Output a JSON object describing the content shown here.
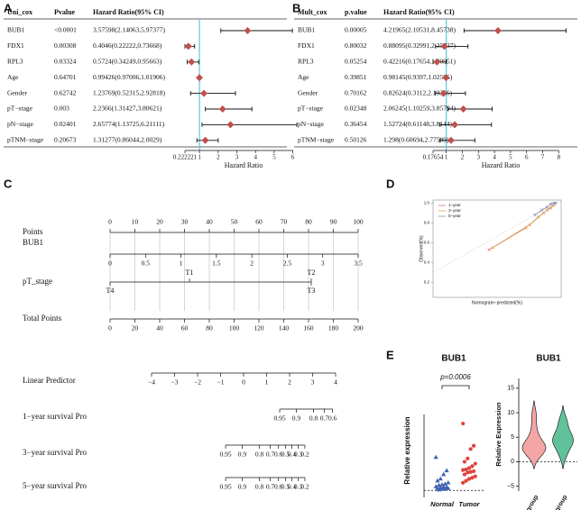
{
  "panel_labels": [
    "A",
    "B",
    "C",
    "D",
    "E"
  ],
  "chart_data": [
    {
      "type": "forest",
      "header": [
        "Uni_cox",
        "Pvalue",
        "Hazard Ratio(95% CI)"
      ],
      "categories": [
        "BUB1",
        "FDX1",
        "RPL3",
        "Age",
        "Gender",
        "pT−stage",
        "pN−stage",
        "pTNM−stage"
      ],
      "pvalues": [
        "<0.0001",
        "0.00308",
        "0.03324",
        "0.64701",
        "0.62742",
        "0.003",
        "0.02401",
        "0.20673"
      ],
      "values": [
        3.57598,
        0.4046,
        0.5724,
        0.99426,
        1.23769,
        2.2366,
        2.65774,
        1.31277
      ],
      "lower": [
        2.14063,
        0.22222,
        0.34249,
        0.97006,
        0.52315,
        1.31427,
        1.13725,
        0.86044
      ],
      "upper": [
        5.97377,
        0.73668,
        0.95663,
        1.01906,
        2.92818,
        3.80621,
        6.21111,
        2.0029
      ],
      "value_labels": [
        "3.57598(2.14063,5.97377)",
        "0.4046(0.22222,0.73668)",
        "0.5724(0.34249,0.95663)",
        "0.99426(0.97006,1.01906)",
        "1.23769(0.52315,2.92818)",
        "2.2366(1.31427,3.80621)",
        "2.65774(1.13725,6.21111)",
        "1.31277(0.86044,2.0029)"
      ],
      "xlabel": "Hazard Ratio",
      "xlim": [
        0.222221,
        6.5
      ],
      "xticks": [
        0.222221,
        1,
        2,
        3,
        4,
        5,
        6
      ],
      "reference_line": 1,
      "color": "#c0504d",
      "reference_color": "#5bc8d6"
    },
    {
      "type": "forest",
      "header": [
        "Mult_cox",
        "p.value",
        "Hazard Ratio(95% CI)"
      ],
      "categories": [
        "BUB1",
        "FDX1",
        "RPL3",
        "Age",
        "Gender",
        "pT−stage",
        "pN−stage",
        "pTNM−stage"
      ],
      "pvalues": [
        "0.00005",
        "0.80032",
        "0.05254",
        "0.39851",
        "0.70162",
        "0.02348",
        "0.36454",
        "0.50126"
      ],
      "values": [
        4.21965,
        0.88095,
        0.42216,
        0.98145,
        0.82624,
        2.06245,
        1.52724,
        1.298
      ],
      "lower": [
        2.10531,
        0.32991,
        0.17654,
        0.9397,
        0.3112,
        1.10259,
        0.61148,
        0.60694
      ],
      "upper": [
        8.45738,
        2.35237,
        1.00951,
        1.02505,
        2.19366,
        3.85794,
        3.8144,
        2.77589
      ],
      "value_labels": [
        "4.21965(2.10531,8.45738)",
        "0.88095(0.32991,2.35237)",
        "0.42216(0.17654,1.00951)",
        "0.98145(0.9397,1.02505)",
        "0.82624(0.3112,2.19366)",
        "2.06245(1.10259,3.85794)",
        "1.52724(0.61148,3.8144)",
        "1.298(0.60694,2.77589)"
      ],
      "xlabel": "Hazard Ratio",
      "xlim": [
        0.17654,
        8.6
      ],
      "xticks": [
        0.17654,
        1,
        2,
        3,
        4,
        5,
        6,
        7,
        8
      ],
      "reference_line": 1,
      "color": "#c0504d",
      "reference_color": "#5bc8d6"
    },
    {
      "type": "nomogram",
      "scales": [
        {
          "label": "Points",
          "ticks": [
            0,
            10,
            20,
            30,
            40,
            50,
            60,
            70,
            80,
            90,
            100
          ]
        },
        {
          "label": "BUB1",
          "ticks": [
            0,
            0.5,
            1,
            1.5,
            2,
            2.5,
            3,
            3.5
          ]
        },
        {
          "label": "pT_stage",
          "categories": [
            "T1",
            "T2",
            "T4",
            "T3"
          ]
        },
        {
          "label": "Total Points",
          "ticks": [
            0,
            20,
            40,
            60,
            80,
            100,
            120,
            140,
            160,
            180,
            200
          ]
        },
        {
          "label": "Linear Predictor",
          "ticks": [
            {
              "value": -4,
              "label": "−4"
            },
            {
              "value": -3,
              "label": "−3"
            },
            {
              "value": -2,
              "label": "−2"
            },
            {
              "value": -1,
              "label": "−1"
            },
            0,
            1,
            2,
            3,
            4
          ]
        },
        {
          "label": "1−year survival Pro",
          "ticks": [
            0.95,
            0.9,
            0.8,
            0.7,
            0.6
          ]
        },
        {
          "label": "3−year survival Pro",
          "ticks": [
            0.95,
            0.9,
            0.8,
            0.7,
            0.6,
            0.5,
            0.4,
            0.3,
            0.2
          ]
        },
        {
          "label": "5−year survival Pro",
          "ticks": [
            0.95,
            0.9,
            0.8,
            0.7,
            0.6,
            0.5,
            0.4,
            0.3,
            0.2
          ]
        }
      ]
    },
    {
      "type": "calibration",
      "ylabel": "Observed(%)",
      "xlabel": "Nomogram−predicted(%)",
      "xlim": [
        0.3,
        1.03
      ],
      "ylim": [
        0.05,
        1.03
      ],
      "yticks": [
        0.2,
        0.4,
        0.6,
        0.8,
        {
          "value": 1,
          "label": "1.0"
        }
      ],
      "series": [
        {
          "name": "1−year",
          "color": "#e8787a",
          "x": [
            0.62,
            0.85,
            0.93,
            0.97,
            0.99
          ],
          "y": [
            0.53,
            0.78,
            0.9,
            0.95,
            0.98
          ]
        },
        {
          "name": "3−year",
          "color": "#d9a54a",
          "x": [
            0.64,
            0.83,
            0.9,
            0.95,
            0.98
          ],
          "y": [
            0.55,
            0.75,
            0.86,
            0.93,
            0.97
          ]
        },
        {
          "name": "5−year",
          "color": "#7f8fb0",
          "x": [
            0.88,
            0.92,
            0.95,
            0.97,
            0.99,
            1.0
          ],
          "y": [
            0.88,
            0.93,
            0.96,
            0.99,
            1.0,
            1.0
          ]
        }
      ]
    },
    {
      "type": "dotplot",
      "title": "BUB1",
      "ylabel": "Relative expression",
      "categories": [
        "Normal",
        "Tumor"
      ],
      "annotation": "p=0.0006",
      "ylim": [
        -1.1,
        19
      ],
      "groups": [
        {
          "color": "#3d5fb0",
          "marker": "triangle",
          "values": [
            5.2,
            3.1,
            2.5,
            1.8,
            1.5,
            1.2,
            1.0,
            0.9,
            0.8,
            0.6,
            0.5,
            0.5,
            0.4,
            0.3,
            0.3,
            0.2,
            0.2,
            0.1
          ]
        },
        {
          "color": "#e0403a",
          "marker": "circle",
          "values": [
            10.5,
            7.0,
            6.5,
            5.0,
            4.5,
            4.2,
            3.8,
            3.5,
            3.3,
            3.2,
            3.0,
            2.9,
            2.8,
            2.5,
            2.2,
            2.0,
            1.8,
            1.5,
            1.2
          ]
        }
      ]
    },
    {
      "type": "violin",
      "title": "BUB1",
      "ylabel": "Relative Expression",
      "categories": [
        "N0 group",
        "N1 group"
      ],
      "ylim": [
        -6,
        17
      ],
      "yticks": [
        {
          "value": -5,
          "label": "−5"
        },
        0,
        5,
        10,
        15
      ],
      "groups": [
        {
          "color": "#f4a6a6",
          "values": [
            1,
            1.5,
            2,
            2.5,
            2.8,
            3,
            3.2,
            3.5,
            4,
            5,
            6,
            8,
            10
          ]
        },
        {
          "color": "#5fc29a",
          "values": [
            1,
            2,
            3,
            3.5,
            4,
            4.2,
            4.5,
            5,
            5.5,
            6,
            7,
            8,
            9
          ]
        }
      ]
    }
  ]
}
